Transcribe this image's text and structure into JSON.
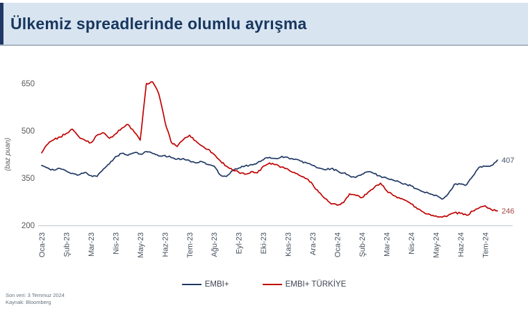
{
  "header": {
    "title": "Ülkemiz spreadlerinde olumlu ayrışma"
  },
  "footer": {
    "line1": "Son veri: 3 Temmuz 2024",
    "line2": "Kaynak: Bloomberg"
  },
  "colors": {
    "header_bg": "#d9e4f1",
    "header_bar": "#1f3864",
    "title_text": "#17375e",
    "embi_line": "#1f3864",
    "turkiye_line": "#c00000"
  },
  "chart_data": {
    "type": "line",
    "title": "",
    "xlabel": "",
    "ylabel": "(baz puan)",
    "ylim": [
      200,
      650
    ],
    "yticks": [
      200,
      350,
      500,
      650
    ],
    "grid": false,
    "legend_position": "bottom",
    "categories": [
      "Oca-23",
      "Şub-23",
      "Mar-23",
      "Nis-23",
      "May-23",
      "Haz-23",
      "Tem-23",
      "Ağu-23",
      "Eyl-23",
      "Eki-23",
      "Kas-23",
      "Ara-23",
      "Oca-24",
      "Şub-24",
      "Mar-24",
      "Nis-24",
      "May-24",
      "Haz-24",
      "Tem-24"
    ],
    "points_per_month": 4,
    "series": [
      {
        "name": "EMBI+",
        "color": "#1f3864",
        "end_label": "407",
        "end_label_color": "#44546a",
        "values": [
          390,
          382,
          375,
          380,
          372,
          365,
          360,
          368,
          358,
          355,
          378,
          395,
          418,
          428,
          422,
          430,
          426,
          434,
          428,
          420,
          422,
          415,
          410,
          412,
          405,
          398,
          402,
          393,
          388,
          360,
          355,
          375,
          382,
          388,
          393,
          398,
          408,
          416,
          412,
          419,
          415,
          409,
          404,
          398,
          390,
          382,
          376,
          380,
          373,
          366,
          357,
          352,
          362,
          370,
          364,
          356,
          350,
          344,
          338,
          332,
          325,
          315,
          306,
          300,
          296,
          283,
          300,
          330,
          331,
          329,
          356,
          384,
          387,
          390,
          407
        ]
      },
      {
        "name": "EMBI+ TÜRKİYE",
        "color": "#c00000",
        "end_label": "246",
        "end_label_color": "#9e4a42",
        "values": [
          430,
          458,
          472,
          480,
          492,
          505,
          482,
          470,
          462,
          486,
          494,
          476,
          490,
          508,
          520,
          497,
          470,
          650,
          655,
          618,
          530,
          465,
          450,
          472,
          486,
          468,
          452,
          441,
          425,
          405,
          388,
          375,
          368,
          362,
          370,
          366,
          388,
          398,
          393,
          385,
          378,
          368,
          357,
          348,
          330,
          305,
          285,
          268,
          264,
          272,
          300,
          295,
          288,
          305,
          320,
          334,
          310,
          296,
          288,
          280,
          268,
          252,
          242,
          235,
          230,
          226,
          232,
          240,
          238,
          232,
          245,
          255,
          262,
          250,
          246
        ]
      }
    ]
  }
}
